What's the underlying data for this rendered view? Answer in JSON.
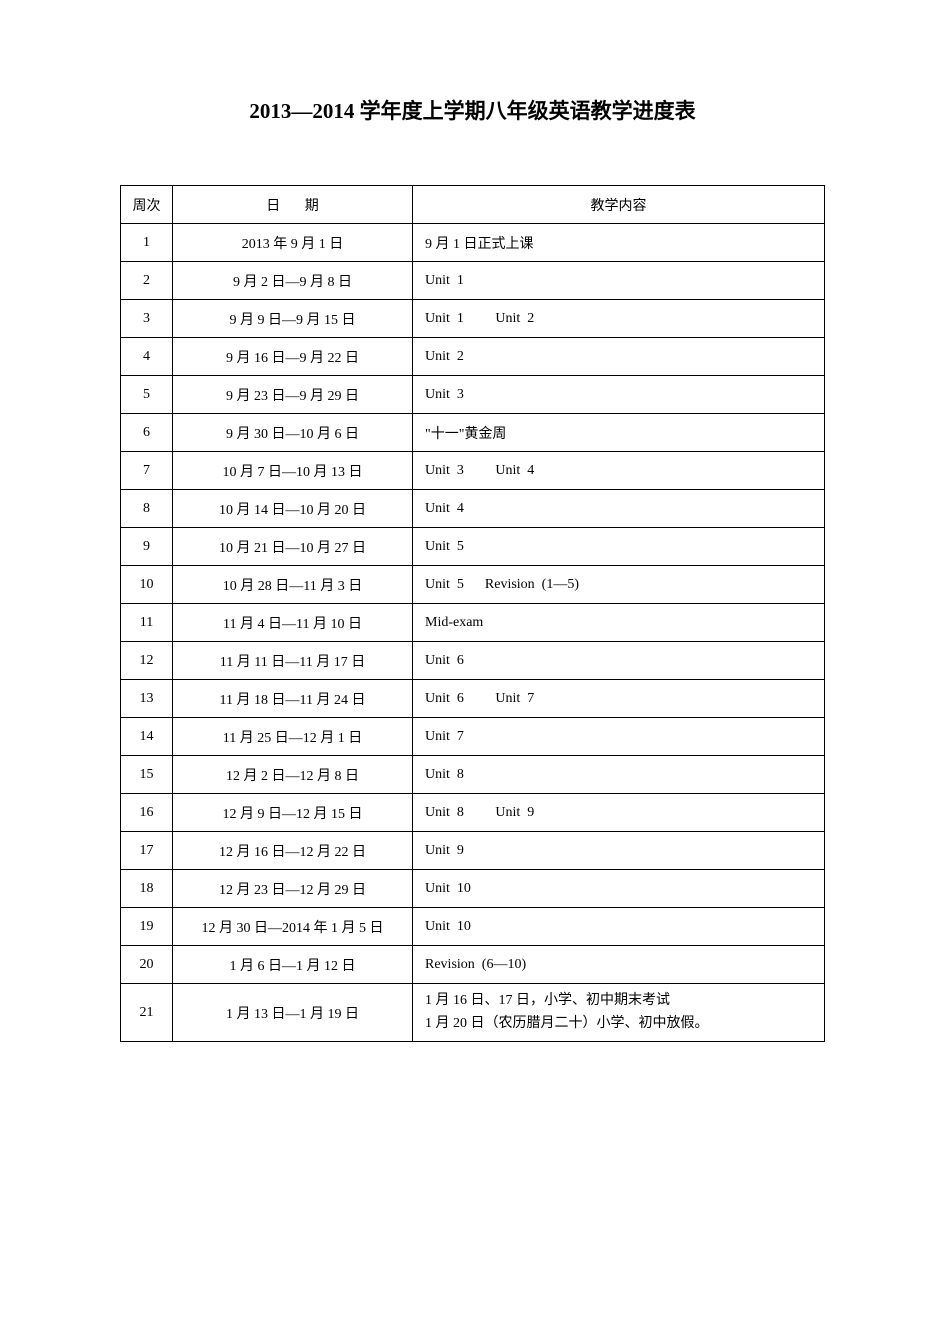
{
  "title": "2013—2014 学年度上学期八年级英语教学进度表",
  "headers": {
    "week": "周次",
    "date_char1": "日",
    "date_char2": "期",
    "content": "教学内容"
  },
  "rows": [
    {
      "week": "1",
      "date": "2013 年 9 月 1 日",
      "content": "9 月 1 日正式上课"
    },
    {
      "week": "2",
      "date": "9 月 2 日—9 月 8 日",
      "content": "Unit  1"
    },
    {
      "week": "3",
      "date": "9 月 9 日—9 月 15 日",
      "content": "Unit  1         Unit  2"
    },
    {
      "week": "4",
      "date": "9 月 16 日—9 月 22 日",
      "content": "Unit  2"
    },
    {
      "week": "5",
      "date": "9 月 23 日—9 月 29 日",
      "content": "Unit  3"
    },
    {
      "week": "6",
      "date": "9 月 30 日—10 月 6 日",
      "content": "\"十一\"黄金周"
    },
    {
      "week": "7",
      "date": "10 月 7 日—10 月 13 日",
      "content": "Unit  3         Unit  4"
    },
    {
      "week": "8",
      "date": "10 月 14 日—10 月 20 日",
      "content": "Unit  4"
    },
    {
      "week": "9",
      "date": "10 月 21 日—10 月 27 日",
      "content": "Unit  5"
    },
    {
      "week": "10",
      "date": "10 月 28 日—11 月 3 日",
      "content": "Unit  5      Revision  (1—5)"
    },
    {
      "week": "11",
      "date": "11 月 4 日—11 月 10 日",
      "content": "Mid-exam"
    },
    {
      "week": "12",
      "date": "11 月 11 日—11 月 17 日",
      "content": "Unit  6"
    },
    {
      "week": "13",
      "date": "11 月 18 日—11 月 24 日",
      "content": "Unit  6         Unit  7"
    },
    {
      "week": "14",
      "date": "11 月 25 日—12 月 1 日",
      "content": "Unit  7"
    },
    {
      "week": "15",
      "date": "12 月 2 日—12 月 8 日",
      "content": "Unit  8"
    },
    {
      "week": "16",
      "date": "12 月 9 日—12 月 15 日",
      "content": "Unit  8         Unit  9"
    },
    {
      "week": "17",
      "date": "12 月 16 日—12 月 22 日",
      "content": "Unit  9"
    },
    {
      "week": "18",
      "date": "12 月 23 日—12 月 29 日",
      "content": "Unit  10"
    },
    {
      "week": "19",
      "date": "12 月 30 日—2014 年 1 月 5 日",
      "content": "Unit  10"
    },
    {
      "week": "20",
      "date": "1 月 6 日—1 月 12 日",
      "content": "Revision  (6—10)"
    },
    {
      "week": "21",
      "date": "1 月 13 日—1 月 19 日",
      "content_line1": "1 月 16 日、17 日，小学、初中期末考试",
      "content_line2": "1 月 20 日（农历腊月二十）小学、初中放假。"
    }
  ]
}
